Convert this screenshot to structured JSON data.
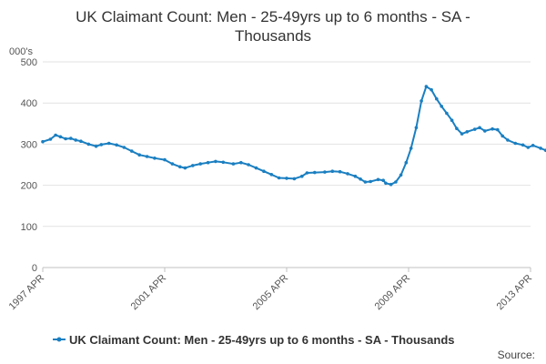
{
  "chart_data": {
    "type": "line",
    "title_lines": [
      "UK Claimant Count: Men - 25-49yrs up to 6 months - SA -",
      "Thousands"
    ],
    "ylabel": "000's",
    "ylim": [
      0,
      500
    ],
    "yticks": [
      0,
      100,
      200,
      300,
      400,
      500
    ],
    "xlim": [
      1997.25,
      2013.25
    ],
    "xticks": [
      {
        "value": 1997.25,
        "label": "1997 APR"
      },
      {
        "value": 2001.25,
        "label": "2001 APR"
      },
      {
        "value": 2005.25,
        "label": "2005 APR"
      },
      {
        "value": 2009.25,
        "label": "2009 APR"
      },
      {
        "value": 2013.25,
        "label": "2013 APR"
      }
    ],
    "grid": "horizontal",
    "legend_position": "bottom",
    "series": [
      {
        "name": "UK Claimant Count: Men - 25-49yrs up to 6 months - SA - Thousands",
        "color": "#1a7fc1",
        "points": [
          [
            1997.25,
            306
          ],
          [
            1997.5,
            312
          ],
          [
            1997.67,
            322
          ],
          [
            1997.83,
            318
          ],
          [
            1998.0,
            313
          ],
          [
            1998.17,
            314
          ],
          [
            1998.33,
            310
          ],
          [
            1998.5,
            307
          ],
          [
            1998.75,
            300
          ],
          [
            1999.0,
            295
          ],
          [
            1999.17,
            299
          ],
          [
            1999.42,
            302
          ],
          [
            1999.67,
            298
          ],
          [
            1999.92,
            292
          ],
          [
            2000.17,
            283
          ],
          [
            2000.42,
            274
          ],
          [
            2000.67,
            270
          ],
          [
            2000.92,
            266
          ],
          [
            2001.25,
            262
          ],
          [
            2001.5,
            252
          ],
          [
            2001.75,
            245
          ],
          [
            2001.92,
            242
          ],
          [
            2002.17,
            248
          ],
          [
            2002.42,
            252
          ],
          [
            2002.67,
            255
          ],
          [
            2002.92,
            258
          ],
          [
            2003.17,
            256
          ],
          [
            2003.5,
            252
          ],
          [
            2003.75,
            255
          ],
          [
            2004.0,
            250
          ],
          [
            2004.25,
            242
          ],
          [
            2004.5,
            234
          ],
          [
            2004.75,
            226
          ],
          [
            2005.0,
            218
          ],
          [
            2005.25,
            217
          ],
          [
            2005.5,
            216
          ],
          [
            2005.75,
            222
          ],
          [
            2005.92,
            230
          ],
          [
            2006.17,
            231
          ],
          [
            2006.5,
            232
          ],
          [
            2006.75,
            234
          ],
          [
            2007.0,
            233
          ],
          [
            2007.25,
            228
          ],
          [
            2007.5,
            222
          ],
          [
            2007.67,
            215
          ],
          [
            2007.83,
            208
          ],
          [
            2008.0,
            209
          ],
          [
            2008.25,
            214
          ],
          [
            2008.42,
            212
          ],
          [
            2008.5,
            205
          ],
          [
            2008.67,
            202
          ],
          [
            2008.83,
            208
          ],
          [
            2009.0,
            225
          ],
          [
            2009.17,
            255
          ],
          [
            2009.33,
            290
          ],
          [
            2009.5,
            340
          ],
          [
            2009.67,
            405
          ],
          [
            2009.83,
            440
          ],
          [
            2010.0,
            432
          ],
          [
            2010.17,
            410
          ],
          [
            2010.33,
            392
          ],
          [
            2010.5,
            375
          ],
          [
            2010.67,
            358
          ],
          [
            2010.83,
            338
          ],
          [
            2011.0,
            325
          ],
          [
            2011.17,
            330
          ],
          [
            2011.42,
            336
          ],
          [
            2011.58,
            340
          ],
          [
            2011.75,
            332
          ],
          [
            2012.0,
            337
          ],
          [
            2012.17,
            335
          ],
          [
            2012.33,
            320
          ],
          [
            2012.5,
            310
          ],
          [
            2012.75,
            302
          ],
          [
            2013.0,
            298
          ],
          [
            2013.17,
            292
          ],
          [
            2013.33,
            297
          ],
          [
            2013.58,
            290
          ],
          [
            2013.75,
            285
          ],
          [
            2013.83,
            276
          ]
        ]
      }
    ]
  },
  "source_label": "Source:"
}
